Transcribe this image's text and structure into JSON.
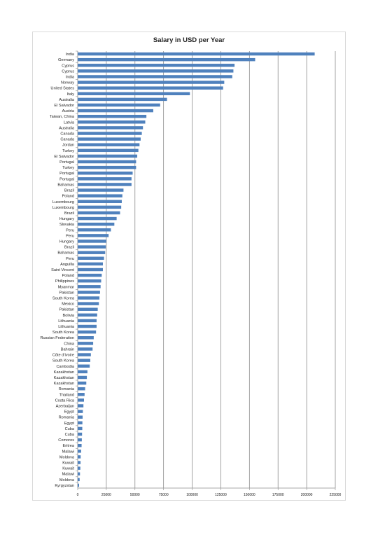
{
  "chart_data": {
    "type": "bar",
    "orientation": "horizontal",
    "title": "Salary in USD per Year",
    "xlabel": "",
    "ylabel": "",
    "xlim": [
      0,
      225000
    ],
    "x_ticks": [
      0,
      25000,
      50000,
      75000,
      100000,
      125000,
      150000,
      175000,
      200000,
      225000
    ],
    "x_tick_labels": [
      "0",
      "25000",
      "50000",
      "75000",
      "100000",
      "125000",
      "150000",
      "175000",
      "200000",
      "225000"
    ],
    "grid": "vertical",
    "legend": "none",
    "bar_color": "#4f81bd",
    "categories": [
      "India",
      "Germany",
      "Cyprus",
      "Cyprus",
      "India",
      "Norway",
      "United States",
      "Italy",
      "Australia",
      "El Salvador",
      "Austria",
      "Taiwan, China",
      "Latvia",
      "Australia",
      "Canada",
      "Canada",
      "Jordan",
      "Turkey",
      "El Salvador",
      "Portugal",
      "Turkey",
      "Portugal",
      "Portugal",
      "Bahamas",
      "Brazil",
      "Poland",
      "Luxembourg",
      "Luxembourg",
      "Brazil",
      "Hungary",
      "Slovakia",
      "Peru",
      "Peru",
      "Hungary",
      "Brazil",
      "Bahamas",
      "Peru",
      "Anguilla",
      "Saint Vincent",
      "Poland",
      "Philippines",
      "Myanmar",
      "Pakistan",
      "South Korea",
      "Mexico",
      "Pakistan",
      "Bolivia",
      "Lithuania",
      "Lithuania",
      "South Korea",
      "Russian Federation",
      "China",
      "Bahrain",
      "Côte d'Ivoire",
      "South Korea",
      "Cambodia",
      "Kazakhstan",
      "Kazakhstan",
      "Kazakhstan",
      "Romania",
      "Thailand",
      "Costa Rica",
      "Azerbaijan",
      "Egypt",
      "Romania",
      "Egypt",
      "Cuba",
      "Cuba",
      "Comoros",
      "Eritrea",
      "Malawi",
      "Moldova",
      "Kuwait",
      "Kuwait",
      "Malawi",
      "Moldova",
      "Kyrgyzstan"
    ],
    "values": [
      207000,
      155000,
      137000,
      136000,
      135000,
      128000,
      127000,
      98000,
      78000,
      72000,
      66000,
      60000,
      59000,
      57000,
      56000,
      55000,
      54000,
      53000,
      52000,
      51000,
      51000,
      48000,
      47000,
      47000,
      40000,
      39000,
      38500,
      38000,
      37000,
      34000,
      32000,
      29000,
      27000,
      25000,
      24500,
      24000,
      23000,
      22000,
      22000,
      21000,
      20500,
      20000,
      19500,
      19000,
      18500,
      17500,
      17000,
      16500,
      16500,
      16000,
      14000,
      13500,
      13000,
      11500,
      11000,
      10500,
      8500,
      8000,
      7500,
      6500,
      6000,
      5500,
      5000,
      4500,
      4300,
      4100,
      4000,
      3800,
      3600,
      3400,
      3000,
      2600,
      2500,
      2300,
      2000,
      1700,
      1200
    ]
  }
}
